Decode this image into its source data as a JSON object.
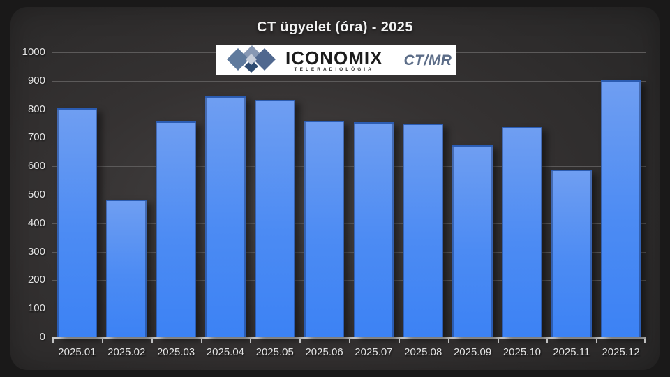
{
  "title": "CT ügyelet (óra) - 2025",
  "logo": {
    "brand": "ICONOMIX",
    "subtitle": "TELERADIOLÓGIA",
    "right_label": "CT/MR",
    "diamond_colors": [
      "#8798b4",
      "#5f7a9d",
      "#50688f",
      "#2f4c72",
      "#c6cdda"
    ]
  },
  "chart_data": {
    "type": "bar",
    "title": "CT ügyelet (óra) - 2025",
    "categories": [
      "2025.01",
      "2025.02",
      "2025.03",
      "2025.04",
      "2025.05",
      "2025.06",
      "2025.07",
      "2025.08",
      "2025.09",
      "2025.10",
      "2025.11",
      "2025.12"
    ],
    "values": [
      803,
      482,
      757,
      845,
      834,
      760,
      754,
      751,
      673,
      739,
      588,
      902
    ],
    "xlabel": "",
    "ylabel": "",
    "ylim": [
      0,
      1000
    ],
    "yticks": [
      0,
      100,
      200,
      300,
      400,
      500,
      600,
      700,
      800,
      900,
      1000
    ],
    "grid": true,
    "legend": "none",
    "colors": {
      "bar_top": "#6f9ef2",
      "bar_bottom": "#3c82f4",
      "bar_border": "#2a4778",
      "gridline": "#5c5a5a",
      "axis_line": "#cdcdcd",
      "label_text": "#e3e3e3",
      "panel_background": "#353232",
      "page_background": "#1a1919"
    }
  }
}
